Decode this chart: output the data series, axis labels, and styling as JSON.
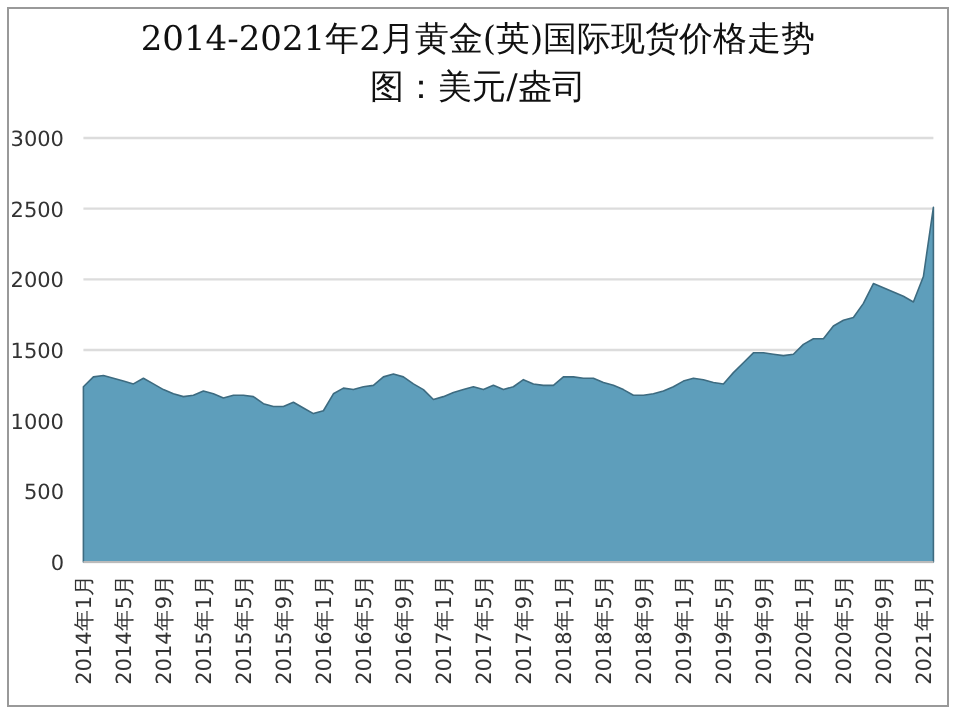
{
  "chart_data": {
    "type": "area",
    "title": "2014-2021年2月黄金(英)国际现货价格走势图：美元/盎司",
    "categories": [
      "2014年1月",
      null,
      null,
      null,
      "2014年5月",
      null,
      null,
      null,
      "2014年9月",
      null,
      null,
      null,
      "2015年1月",
      null,
      null,
      null,
      "2015年5月",
      null,
      null,
      null,
      "2015年9月",
      null,
      null,
      null,
      "2016年1月",
      null,
      null,
      null,
      "2016年5月",
      null,
      null,
      null,
      "2016年9月",
      null,
      null,
      null,
      "2017年1月",
      null,
      null,
      null,
      "2017年5月",
      null,
      null,
      null,
      "2017年9月",
      null,
      null,
      null,
      "2018年1月",
      null,
      null,
      null,
      "2018年5月",
      null,
      null,
      null,
      "2018年9月",
      null,
      null,
      null,
      "2019年1月",
      null,
      null,
      null,
      "2019年5月",
      null,
      null,
      null,
      "2019年9月",
      null,
      null,
      null,
      "2020年1月",
      null,
      null,
      null,
      "2020年5月",
      null,
      null,
      null,
      "2020年9月",
      null,
      null,
      null,
      "2021年1月",
      null
    ],
    "series": [
      {
        "color": "#5e9ebb",
        "values": [
          1240,
          1310,
          1320,
          1300,
          1280,
          1260,
          1300,
          1260,
          1220,
          1190,
          1170,
          1180,
          1210,
          1190,
          1160,
          1180,
          1180,
          1170,
          1120,
          1100,
          1100,
          1130,
          1090,
          1050,
          1070,
          1190,
          1230,
          1220,
          1240,
          1250,
          1310,
          1330,
          1310,
          1260,
          1220,
          1150,
          1170,
          1200,
          1220,
          1240,
          1220,
          1250,
          1220,
          1240,
          1290,
          1260,
          1250,
          1250,
          1310,
          1310,
          1300,
          1300,
          1270,
          1250,
          1220,
          1180,
          1180,
          1190,
          1210,
          1240,
          1280,
          1300,
          1290,
          1270,
          1260,
          1340,
          1410,
          1480,
          1480,
          1470,
          1460,
          1470,
          1540,
          1580,
          1580,
          1670,
          1710,
          1730,
          1830,
          1970,
          1940,
          1910,
          1880,
          1840,
          2020,
          2510
        ]
      }
    ],
    "ylim": [
      0,
      3000
    ],
    "yticks": [
      0,
      500,
      1000,
      1500,
      2000,
      2500,
      3000
    ],
    "grid": "y"
  }
}
